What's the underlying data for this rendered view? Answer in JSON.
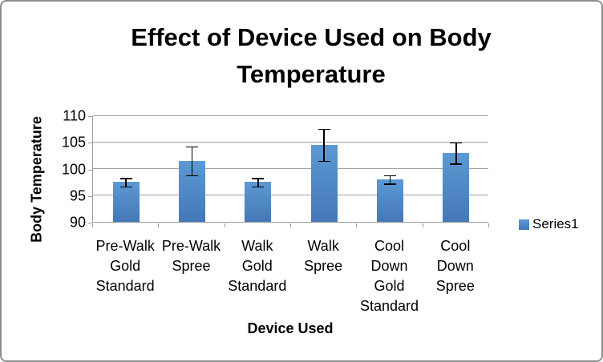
{
  "chart_data": {
    "type": "bar",
    "title": "Effect of Device Used on Body Temperature",
    "title_lines": [
      "Effect of Device Used on Body",
      "Temperature"
    ],
    "xlabel": "Device Used",
    "ylabel": "Body Temperature",
    "categories": [
      "Pre-Walk Gold Standard",
      "Pre-Walk Spree",
      "Walk Gold Standard",
      "Walk Spree",
      "Cool Down Gold Standard",
      "Cool Down Spree"
    ],
    "category_label_lines": [
      [
        "Pre-Walk",
        "Gold",
        "Standard"
      ],
      [
        "Pre-Walk",
        "Spree"
      ],
      [
        "Walk",
        "Gold",
        "Standard"
      ],
      [
        "Walk",
        "Spree"
      ],
      [
        "Cool",
        "Down",
        "Gold",
        "Standard"
      ],
      [
        "Cool",
        "Down",
        "Spree"
      ]
    ],
    "series": [
      {
        "name": "Series1",
        "values": [
          97.5,
          101.5,
          97.5,
          104.5,
          98,
          103
        ],
        "errors": [
          0.8,
          2.7,
          0.8,
          3.0,
          0.8,
          2.0
        ]
      }
    ],
    "ylim": [
      90,
      110
    ],
    "yticks": [
      90,
      95,
      100,
      105,
      110
    ],
    "grid": true,
    "error_bars": true,
    "legend_position": "right",
    "colors": {
      "bar_top": "#5c99d3",
      "bar_bottom": "#4478b7",
      "axis": "#9b9b9b",
      "gridline": "#a3a3a3",
      "text": "#000000",
      "frame_border": "#8e8e8e"
    }
  }
}
